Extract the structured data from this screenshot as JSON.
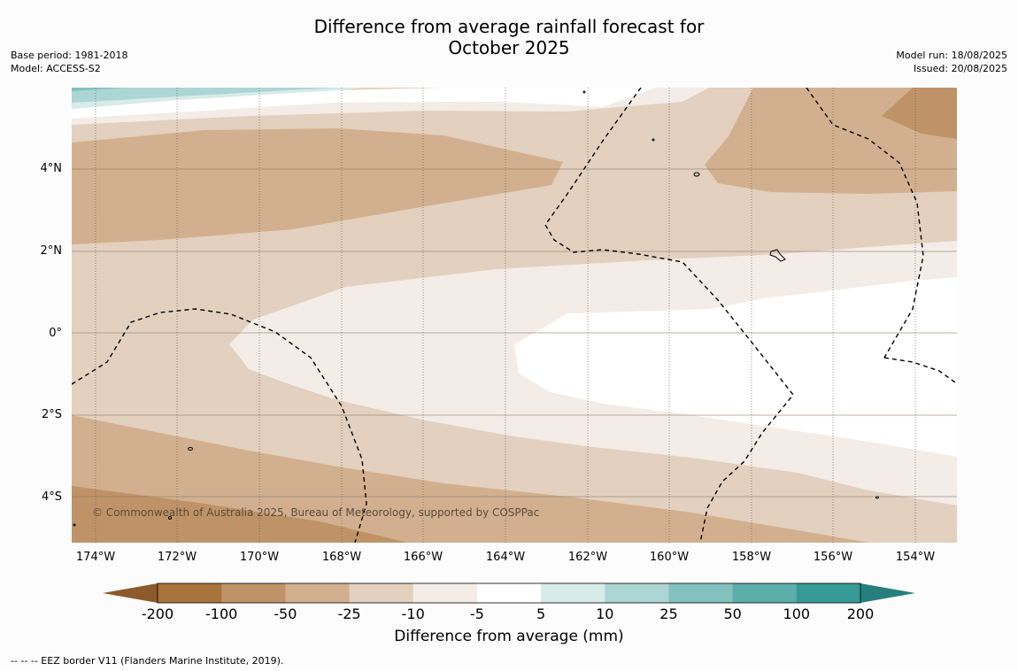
{
  "title_line1": "Difference from average rainfall forecast for",
  "title_line2": "October 2025",
  "base_period": "Base period: 1981-2018",
  "model": "Model: ACCESS-S2",
  "model_run": "Model run: 18/08/2025",
  "issued": "Issued: 20/08/2025",
  "lat_labels": [
    "4°N",
    "2°N",
    "0°",
    "2°S",
    "4°S"
  ],
  "lon_labels": [
    "174°W",
    "172°W",
    "170°W",
    "168°W",
    "166°W",
    "164°W",
    "162°W",
    "160°W",
    "158°W",
    "156°W",
    "154°W"
  ],
  "credit": "© Commonwealth of Australia 2025, Bureau of Meteorology, supported by COSPPac",
  "colorbar": {
    "ticks": [
      "-200",
      "-100",
      "-50",
      "-25",
      "-10",
      "-5",
      "5",
      "10",
      "25",
      "50",
      "100",
      "200"
    ],
    "colors": [
      "#a8733c",
      "#bf9367",
      "#d2b08f",
      "#e3d0be",
      "#f4ece6",
      "#ffffff",
      "#d7ebe9",
      "#acd6d4",
      "#83c1bf",
      "#5dadab",
      "#369a97"
    ],
    "under_color": "#8c5a2b",
    "over_color": "#267f7c",
    "title": "Difference from average (mm)"
  },
  "footer": "--  --  -- EEZ border V11 (Flanders Marine Institute, 2019)."
}
